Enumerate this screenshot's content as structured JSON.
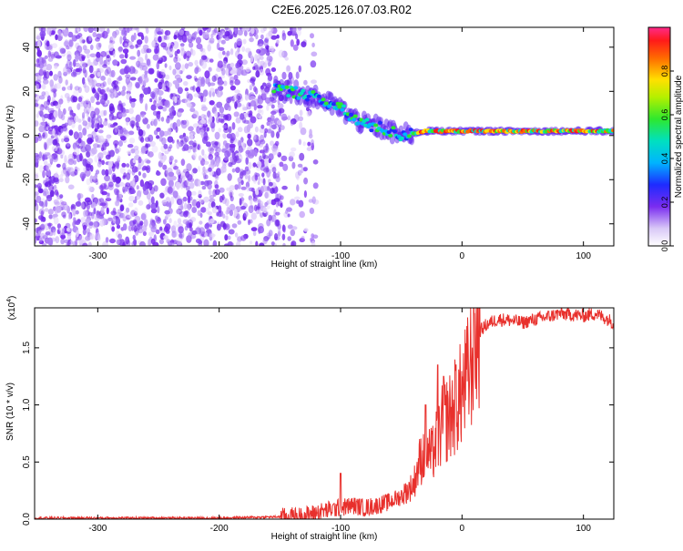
{
  "title": "C2E6.2025.126.07.03.R02",
  "colors": {
    "signal": "#e8302c",
    "noise": "#7a2cf0",
    "axis": "#000000"
  },
  "chart_data": [
    {
      "type": "heatmap",
      "xlabel": "Height of straight line (km)",
      "ylabel": "Frequency (Hz)",
      "xlim": [
        -352,
        125
      ],
      "ylim": [
        -50,
        49
      ],
      "xticks": [
        -300,
        -200,
        -100,
        0,
        100
      ],
      "xtick_labels": [
        "-300",
        "-200",
        "-100",
        "0",
        "100"
      ],
      "yticks": [
        -40,
        -20,
        0,
        20,
        40
      ],
      "ytick_labels": [
        "-40",
        "-20",
        "0",
        "20",
        "40"
      ],
      "colorbar": {
        "label": "Normalized spectral amplitude",
        "range": [
          0,
          1
        ],
        "ticks": [
          0,
          0.2,
          0.4,
          0.6,
          0.8
        ],
        "tick_labels": [
          "0.0",
          "0.2",
          "0.4",
          "0.6",
          "0.8"
        ]
      },
      "noise_region": {
        "x_end": -150,
        "y_range": [
          -50,
          49
        ]
      },
      "ridge": {
        "description_points_x": [
          -155,
          -145,
          -130,
          -115,
          -100,
          -90,
          -80,
          -70,
          -60,
          -50,
          -40,
          -30,
          -20,
          -10,
          0,
          20,
          40,
          60,
          80,
          100,
          125
        ],
        "description_points_y": [
          22,
          20,
          19,
          16,
          12,
          8,
          5,
          4,
          2,
          0,
          1,
          2,
          2,
          2,
          2,
          2,
          2,
          2,
          2,
          2,
          2
        ]
      }
    },
    {
      "type": "line",
      "xlabel": "Height of straight line (km)",
      "ylabel": "SNR (10 * v/v)",
      "scale_label": "(x10",
      "scale_exponent": "4",
      "scale_label_close": ")",
      "xlim": [
        -352,
        125
      ],
      "ylim": [
        0,
        1.85
      ],
      "xticks": [
        -300,
        -200,
        -100,
        0,
        100
      ],
      "xtick_labels": [
        "-300",
        "-200",
        "-100",
        "0",
        "100"
      ],
      "yticks": [
        0,
        0.5,
        1.0,
        1.5
      ],
      "ytick_labels": [
        "0.0",
        "0.5",
        "1.0",
        "1.5"
      ],
      "series": [
        {
          "x": [
            -352,
            -300,
            -250,
            -200,
            -150,
            -130,
            -115,
            -100,
            -90,
            -80,
            -70,
            -60,
            -50,
            -40,
            -35,
            -30,
            -25,
            -20,
            -15,
            -10,
            -5,
            0,
            5,
            10,
            15,
            20,
            25,
            30,
            40,
            50,
            60,
            70,
            80,
            90,
            100,
            110,
            120,
            125
          ],
          "y": [
            0.01,
            0.01,
            0.01,
            0.01,
            0.02,
            0.03,
            0.07,
            0.1,
            0.12,
            0.1,
            0.12,
            0.15,
            0.2,
            0.3,
            0.5,
            0.6,
            0.55,
            0.7,
            0.85,
            0.9,
            1.0,
            1.1,
            1.25,
            1.5,
            1.65,
            1.7,
            1.73,
            1.75,
            1.74,
            1.72,
            1.75,
            1.77,
            1.8,
            1.79,
            1.78,
            1.8,
            1.75,
            1.72
          ],
          "peak_points": [
            [
              -100,
              0.4
            ],
            [
              -30,
              1.0
            ],
            [
              -20,
              1.35
            ],
            [
              -15,
              1.25
            ],
            [
              -5,
              1.35
            ],
            [
              10,
              1.8
            ]
          ]
        }
      ]
    }
  ]
}
